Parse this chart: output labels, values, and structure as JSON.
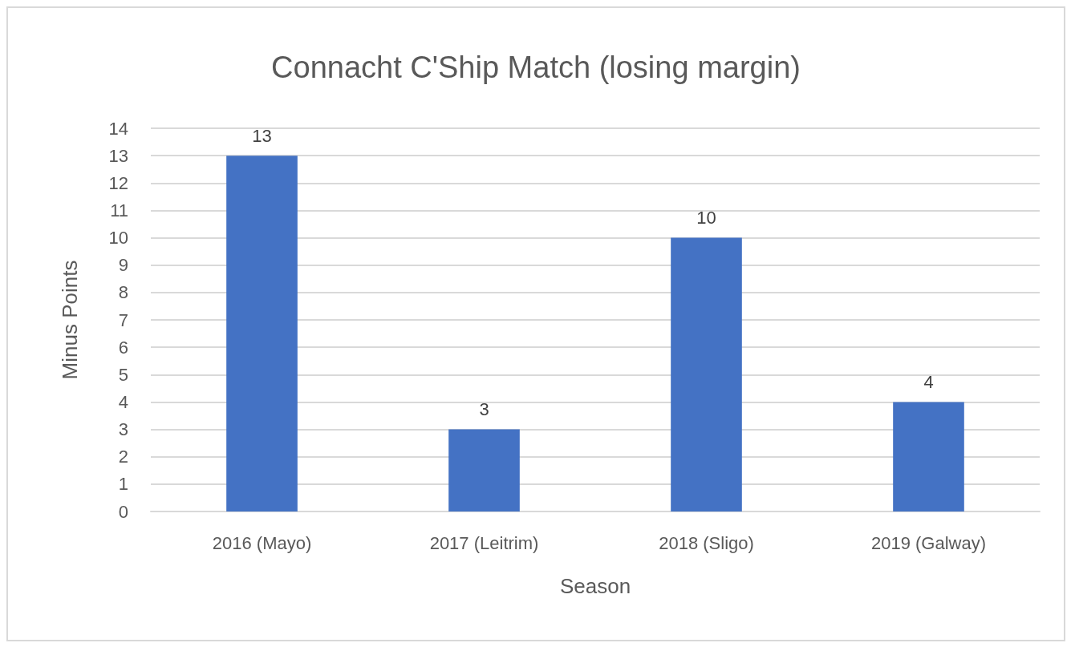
{
  "chart_data": {
    "type": "bar",
    "title": "Connacht C'Ship Match (losing margin)",
    "xlabel": "Season",
    "ylabel": "Minus Points",
    "categories": [
      "2016 (Mayo)",
      "2017 (Leitrim)",
      "2018 (Sligo)",
      "2019 (Galway)"
    ],
    "values": [
      13,
      3,
      10,
      4
    ],
    "color": "#4472c4",
    "ylim": [
      0,
      14
    ],
    "yticks": [
      0,
      1,
      2,
      3,
      4,
      5,
      6,
      7,
      8,
      9,
      10,
      11,
      12,
      13,
      14
    ],
    "grid": "y",
    "data_labels": true
  }
}
